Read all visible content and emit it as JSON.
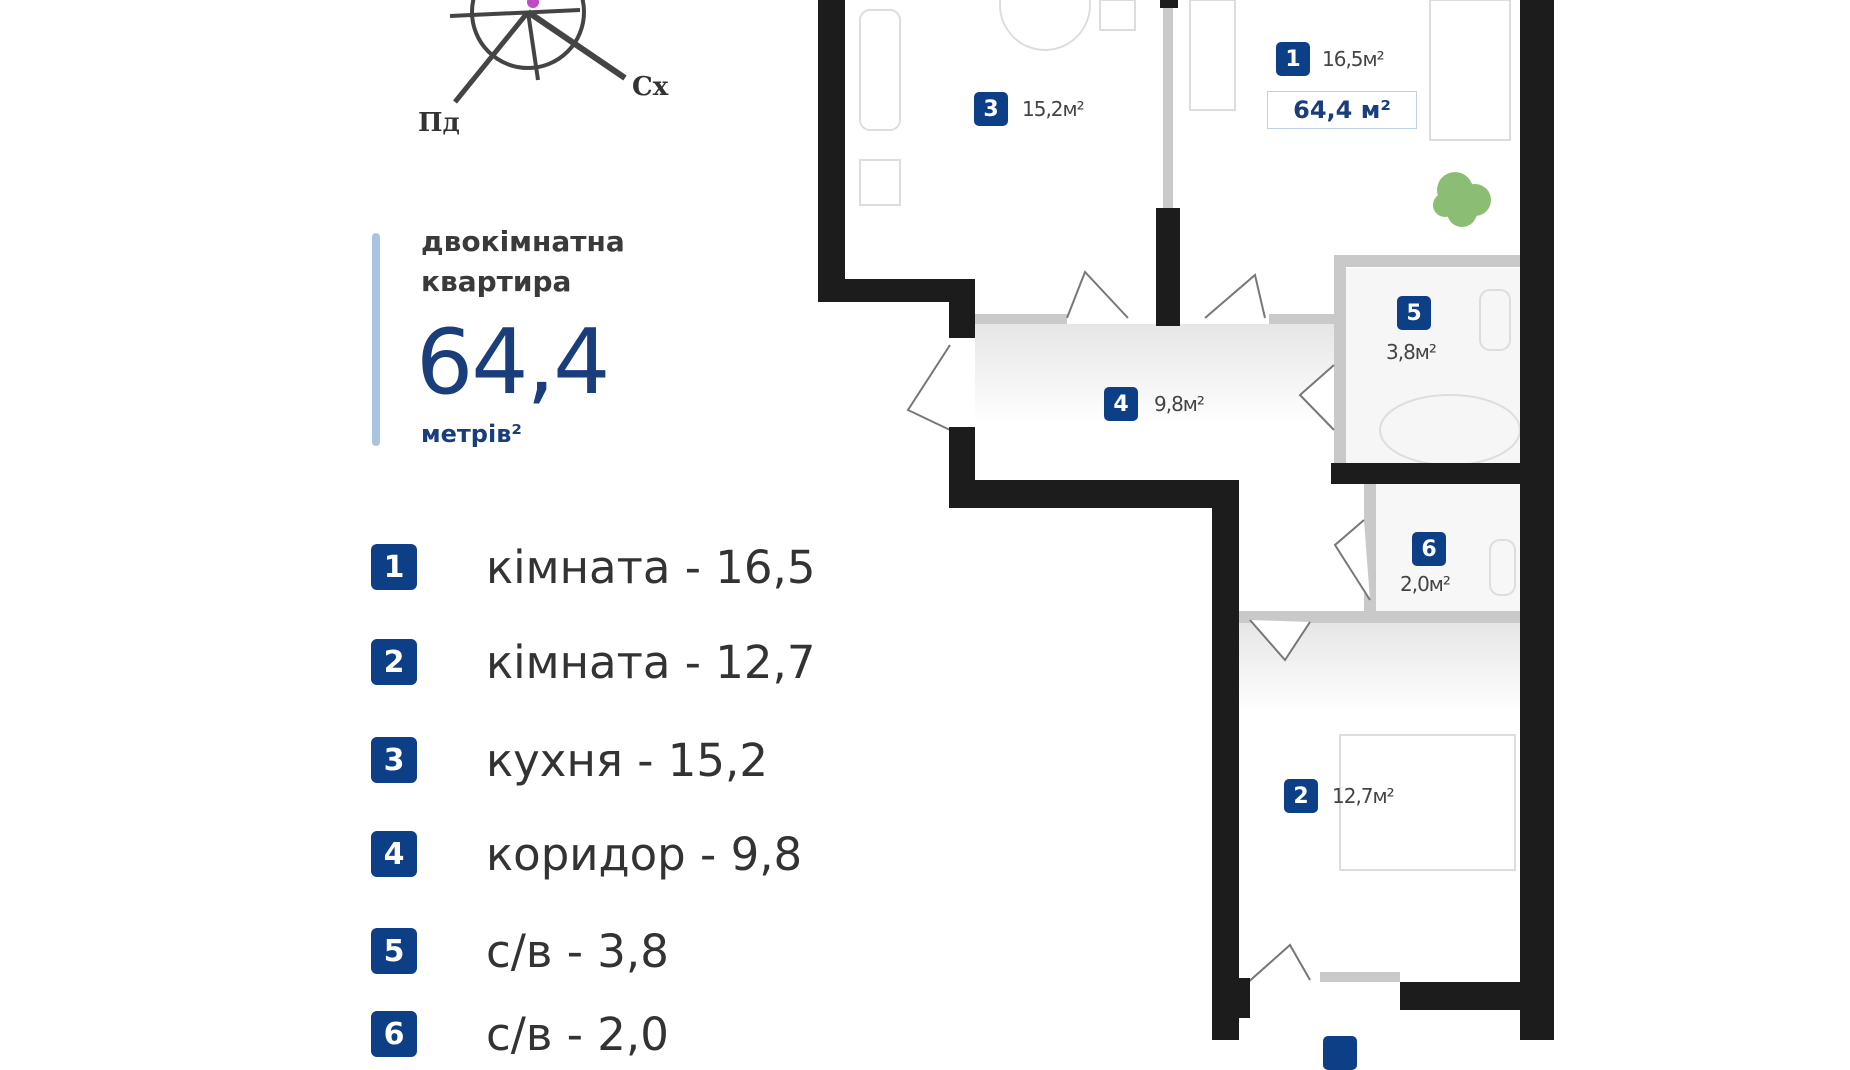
{
  "compass": {
    "south_label": "Пд",
    "east_label": "Сх",
    "icon": "compass-rose-icon"
  },
  "summary": {
    "type_line1": "двокімнатна",
    "type_line2": "квартира",
    "area": "64,4",
    "unit": "метрів²"
  },
  "rooms": [
    {
      "num": "1",
      "label": "кімната - 16,5"
    },
    {
      "num": "2",
      "label": "кімната - 12,7"
    },
    {
      "num": "3",
      "label": "кухня - 15,2"
    },
    {
      "num": "4",
      "label": "коридор - 9,8"
    },
    {
      "num": "5",
      "label": "с/в - 3,8"
    },
    {
      "num": "6",
      "label": "с/в - 2,0"
    }
  ],
  "plan": {
    "total": "64,4 м²",
    "labels": [
      {
        "num": "1",
        "area": "16,5м²"
      },
      {
        "num": "2",
        "area": "12,7м²"
      },
      {
        "num": "3",
        "area": "15,2м²"
      },
      {
        "num": "4",
        "area": "9,8м²"
      },
      {
        "num": "5",
        "area": "3,8м²"
      },
      {
        "num": "6",
        "area": "2,0м²"
      }
    ]
  },
  "colors": {
    "brand_blue": "#0d3f86",
    "accent_bar": "#a9c4e2",
    "wall": "#1c1c1c"
  }
}
